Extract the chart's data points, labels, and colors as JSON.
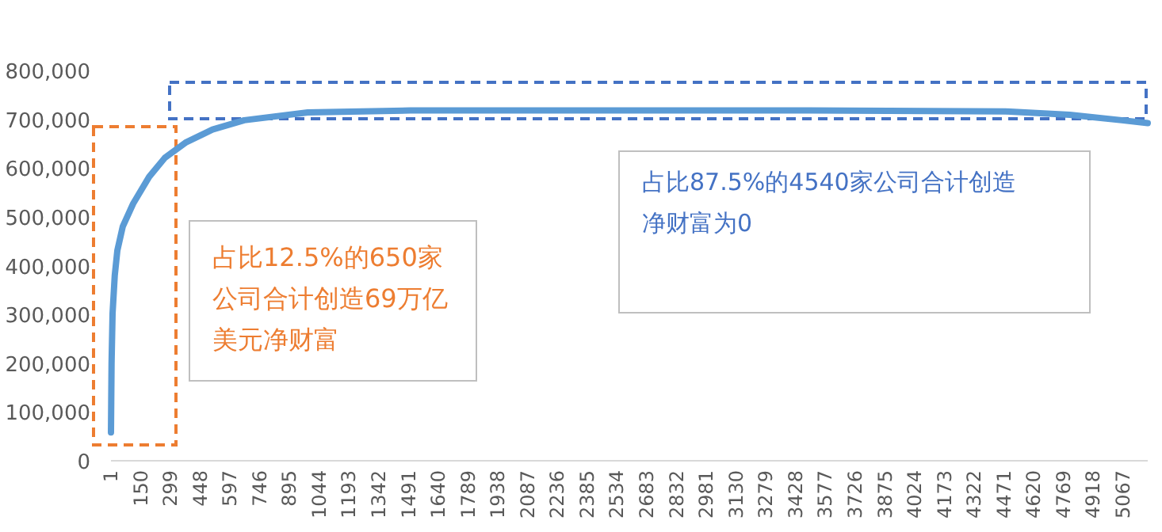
{
  "chart_data": {
    "type": "line",
    "x": [
      1,
      4,
      9,
      20,
      33,
      60,
      112,
      192,
      271,
      374,
      509,
      668,
      986,
      1500,
      2500,
      3500,
      4481,
      4800,
      5060,
      5190
    ],
    "series": [
      {
        "color": "#5b9bd5",
        "values": [
          58000,
          200000,
          302000,
          380000,
          431000,
          480000,
          527000,
          582000,
          621000,
          652000,
          679000,
          698000,
          714000,
          718000,
          718000,
          718000,
          716000,
          709000,
          698000,
          692000
        ]
      }
    ],
    "xlim": [
      1,
      5190
    ],
    "xticks": [
      1,
      150,
      299,
      448,
      597,
      746,
      895,
      1044,
      1193,
      1342,
      1491,
      1640,
      1789,
      1938,
      2087,
      2236,
      2385,
      2534,
      2683,
      2832,
      2981,
      3130,
      3279,
      3428,
      3577,
      3726,
      3875,
      4024,
      4173,
      4322,
      4471,
      4620,
      4769,
      4918,
      5067
    ],
    "ylim": [
      0,
      800000
    ],
    "yticks": [
      {
        "value": 0,
        "label": "0"
      },
      {
        "value": 100000,
        "label": "100,000"
      },
      {
        "value": 200000,
        "label": "200,000"
      },
      {
        "value": 300000,
        "label": "300,000"
      },
      {
        "value": 400000,
        "label": "400,000"
      },
      {
        "value": 500000,
        "label": "500,000"
      },
      {
        "value": 600000,
        "label": "600,000"
      },
      {
        "value": 700000,
        "label": "700,000"
      },
      {
        "value": 800000,
        "label": "800,000"
      }
    ],
    "grid": false,
    "marker": "none",
    "line_style": "solid",
    "annotations": [
      "占比12.5%的650家公司合计创造69万亿美元净财富",
      "占比87.5%的4540家公司合计创造净财富为0"
    ]
  }
}
